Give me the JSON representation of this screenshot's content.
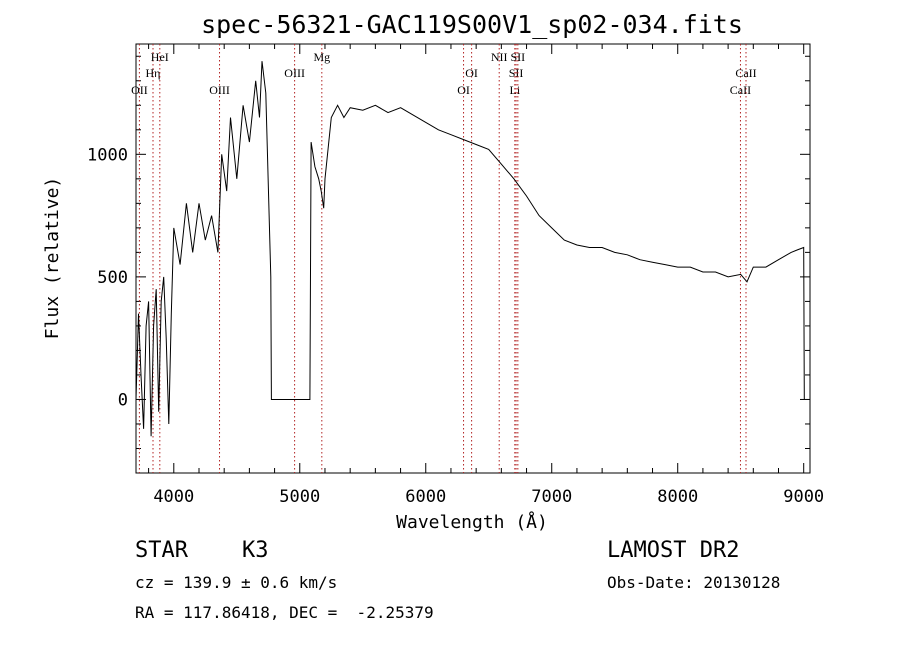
{
  "chart_data": {
    "type": "line",
    "title": "spec-56321-GAC119S00V1_sp02-034.fits",
    "xlabel": "Wavelength (Å)",
    "ylabel": "Flux (relative)",
    "xlim": [
      3700,
      9050
    ],
    "ylim": [
      -300,
      1450
    ],
    "x_ticks": [
      4000,
      5000,
      6000,
      7000,
      8000,
      9000
    ],
    "y_ticks": [
      0,
      500,
      1000
    ],
    "grid": false,
    "series": [
      {
        "points": [
          [
            3700,
            0
          ],
          [
            3720,
            350
          ],
          [
            3740,
            100
          ],
          [
            3760,
            -120
          ],
          [
            3780,
            300
          ],
          [
            3800,
            400
          ],
          [
            3820,
            -150
          ],
          [
            3840,
            300
          ],
          [
            3860,
            450
          ],
          [
            3880,
            -50
          ],
          [
            3900,
            400
          ],
          [
            3920,
            500
          ],
          [
            3940,
            250
          ],
          [
            3960,
            -100
          ],
          [
            3980,
            350
          ],
          [
            4000,
            700
          ],
          [
            4050,
            550
          ],
          [
            4100,
            800
          ],
          [
            4150,
            600
          ],
          [
            4200,
            800
          ],
          [
            4250,
            650
          ],
          [
            4300,
            750
          ],
          [
            4350,
            600
          ],
          [
            4380,
            1000
          ],
          [
            4420,
            850
          ],
          [
            4450,
            1150
          ],
          [
            4500,
            900
          ],
          [
            4550,
            1200
          ],
          [
            4600,
            1050
          ],
          [
            4650,
            1300
          ],
          [
            4680,
            1150
          ],
          [
            4700,
            1380
          ],
          [
            4730,
            1250
          ],
          [
            4770,
            500
          ],
          [
            4775,
            0
          ],
          [
            4800,
            0
          ],
          [
            4900,
            0
          ],
          [
            5000,
            0
          ],
          [
            5080,
            0
          ],
          [
            5090,
            1050
          ],
          [
            5120,
            950
          ],
          [
            5150,
            900
          ],
          [
            5170,
            850
          ],
          [
            5190,
            780
          ],
          [
            5200,
            900
          ],
          [
            5250,
            1150
          ],
          [
            5300,
            1200
          ],
          [
            5350,
            1150
          ],
          [
            5400,
            1190
          ],
          [
            5500,
            1180
          ],
          [
            5600,
            1200
          ],
          [
            5700,
            1170
          ],
          [
            5800,
            1190
          ],
          [
            5900,
            1160
          ],
          [
            6000,
            1130
          ],
          [
            6100,
            1100
          ],
          [
            6200,
            1080
          ],
          [
            6300,
            1060
          ],
          [
            6400,
            1040
          ],
          [
            6500,
            1020
          ],
          [
            6600,
            960
          ],
          [
            6700,
            900
          ],
          [
            6800,
            830
          ],
          [
            6900,
            750
          ],
          [
            7000,
            700
          ],
          [
            7100,
            650
          ],
          [
            7200,
            630
          ],
          [
            7300,
            620
          ],
          [
            7400,
            620
          ],
          [
            7500,
            600
          ],
          [
            7600,
            590
          ],
          [
            7700,
            570
          ],
          [
            7800,
            560
          ],
          [
            7900,
            550
          ],
          [
            8000,
            540
          ],
          [
            8100,
            540
          ],
          [
            8200,
            520
          ],
          [
            8300,
            520
          ],
          [
            8400,
            500
          ],
          [
            8500,
            510
          ],
          [
            8550,
            480
          ],
          [
            8600,
            540
          ],
          [
            8700,
            540
          ],
          [
            8800,
            570
          ],
          [
            8900,
            600
          ],
          [
            8950,
            610
          ],
          [
            9000,
            620
          ],
          [
            9005,
            0
          ]
        ]
      }
    ],
    "lines": [
      {
        "x": 3727,
        "label": "OII",
        "row": 3
      },
      {
        "x": 3835,
        "label": "Hη",
        "row": 2
      },
      {
        "x": 3889,
        "label": "HeI",
        "row": 1
      },
      {
        "x": 4363,
        "label": "OIII",
        "row": 3
      },
      {
        "x": 4959,
        "label": "OIII",
        "row": 2
      },
      {
        "x": 5175,
        "label": "Mg",
        "row": 1
      },
      {
        "x": 6300,
        "label": "OI",
        "row": 3
      },
      {
        "x": 6364,
        "label": "OI",
        "row": 2
      },
      {
        "x": 6583,
        "label": "NII",
        "row": 1
      },
      {
        "x": 6707,
        "label": "Li",
        "row": 3
      },
      {
        "x": 6717,
        "label": "SII",
        "row": 2
      },
      {
        "x": 6731,
        "label": "SII",
        "row": 1
      },
      {
        "x": 8498,
        "label": "CaII",
        "row": 3
      },
      {
        "x": 8542,
        "label": "CaII",
        "row": 2
      }
    ]
  },
  "info": {
    "class_label": "STAR",
    "subclass": "K3",
    "cz": "cz = 139.9 ± 0.6 km/s",
    "radec": "RA = 117.86418, DEC =  -2.25379",
    "survey": "LAMOST DR2",
    "obs_date": "Obs-Date: 20130128"
  }
}
